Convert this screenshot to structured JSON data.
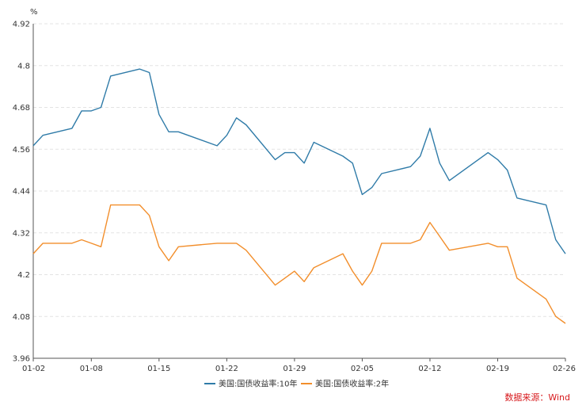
{
  "chart_data": {
    "type": "line",
    "y_unit": "%",
    "ylim": [
      3.96,
      4.92
    ],
    "y_ticks": [
      "3.96",
      "4.08",
      "4.2",
      "4.32",
      "4.44",
      "4.56",
      "4.68",
      "4.8",
      "4.92"
    ],
    "x_ticks": [
      "01-02",
      "01-08",
      "01-15",
      "01-22",
      "01-29",
      "02-05",
      "02-12",
      "02-19",
      "02-26"
    ],
    "grid": true,
    "legend_position": "bottom",
    "source": "数据来源：Wind",
    "series": [
      {
        "name": "美国:国债收益率:10年",
        "color": "#2f7ba8",
        "points": [
          [
            "01-02",
            4.57
          ],
          [
            "01-03",
            4.6
          ],
          [
            "01-06",
            4.62
          ],
          [
            "01-07",
            4.67
          ],
          [
            "01-08",
            4.67
          ],
          [
            "01-09",
            4.68
          ],
          [
            "01-10",
            4.77
          ],
          [
            "01-13",
            4.79
          ],
          [
            "01-14",
            4.78
          ],
          [
            "01-15",
            4.66
          ],
          [
            "01-16",
            4.61
          ],
          [
            "01-17",
            4.61
          ],
          [
            "01-21",
            4.57
          ],
          [
            "01-22",
            4.6
          ],
          [
            "01-23",
            4.65
          ],
          [
            "01-24",
            4.63
          ],
          [
            "01-27",
            4.53
          ],
          [
            "01-28",
            4.55
          ],
          [
            "01-29",
            4.55
          ],
          [
            "01-30",
            4.52
          ],
          [
            "01-31",
            4.58
          ],
          [
            "02-03",
            4.54
          ],
          [
            "02-04",
            4.52
          ],
          [
            "02-05",
            4.43
          ],
          [
            "02-06",
            4.45
          ],
          [
            "02-07",
            4.49
          ],
          [
            "02-10",
            4.51
          ],
          [
            "02-11",
            4.54
          ],
          [
            "02-12",
            4.62
          ],
          [
            "02-13",
            4.52
          ],
          [
            "02-14",
            4.47
          ],
          [
            "02-18",
            4.55
          ],
          [
            "02-19",
            4.53
          ],
          [
            "02-20",
            4.5
          ],
          [
            "02-21",
            4.42
          ],
          [
            "02-24",
            4.4
          ],
          [
            "02-25",
            4.3
          ],
          [
            "02-26",
            4.26
          ]
        ]
      },
      {
        "name": "美国:国债收益率:2年",
        "color": "#f28e2b",
        "points": [
          [
            "01-02",
            4.26
          ],
          [
            "01-03",
            4.29
          ],
          [
            "01-06",
            4.29
          ],
          [
            "01-07",
            4.3
          ],
          [
            "01-08",
            4.29
          ],
          [
            "01-09",
            4.28
          ],
          [
            "01-10",
            4.4
          ],
          [
            "01-13",
            4.4
          ],
          [
            "01-14",
            4.37
          ],
          [
            "01-15",
            4.28
          ],
          [
            "01-16",
            4.24
          ],
          [
            "01-17",
            4.28
          ],
          [
            "01-21",
            4.29
          ],
          [
            "01-22",
            4.29
          ],
          [
            "01-23",
            4.29
          ],
          [
            "01-24",
            4.27
          ],
          [
            "01-27",
            4.17
          ],
          [
            "01-28",
            4.19
          ],
          [
            "01-29",
            4.21
          ],
          [
            "01-30",
            4.18
          ],
          [
            "01-31",
            4.22
          ],
          [
            "02-03",
            4.26
          ],
          [
            "02-04",
            4.21
          ],
          [
            "02-05",
            4.17
          ],
          [
            "02-06",
            4.21
          ],
          [
            "02-07",
            4.29
          ],
          [
            "02-10",
            4.29
          ],
          [
            "02-11",
            4.3
          ],
          [
            "02-12",
            4.35
          ],
          [
            "02-13",
            4.31
          ],
          [
            "02-14",
            4.27
          ],
          [
            "02-18",
            4.29
          ],
          [
            "02-19",
            4.28
          ],
          [
            "02-20",
            4.28
          ],
          [
            "02-21",
            4.19
          ],
          [
            "02-24",
            4.13
          ],
          [
            "02-25",
            4.08
          ],
          [
            "02-26",
            4.06
          ]
        ]
      }
    ]
  }
}
